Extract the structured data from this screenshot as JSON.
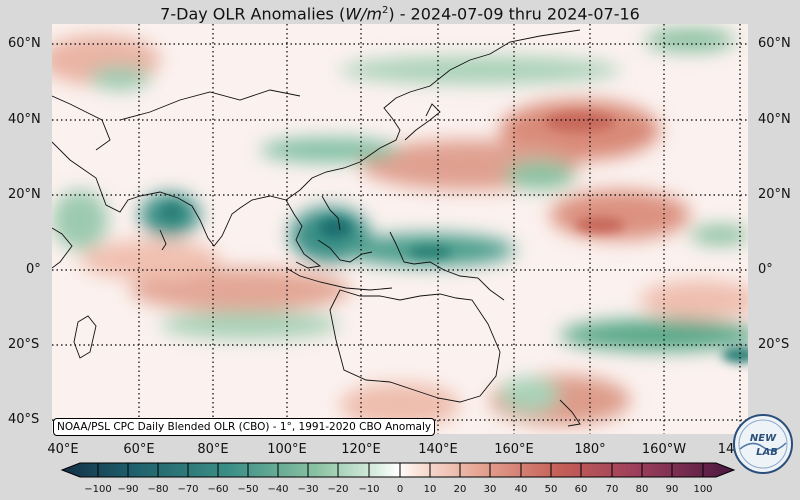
{
  "title": {
    "prefix": "7-Day OLR Anomalies (",
    "unit_w": "W/m",
    "unit_exp": "2",
    "suffix": ") - 2024-07-09 thru 2024-07-16"
  },
  "map": {
    "lat_labels": [
      "60°N",
      "40°N",
      "20°N",
      "0°",
      "20°S",
      "40°S"
    ],
    "lon_labels": [
      "40°E",
      "60°E",
      "80°E",
      "100°E",
      "120°E",
      "140°E",
      "160°E",
      "180°",
      "160°W",
      "14"
    ],
    "source_note": "NOAA/PSL CPC Daily Blended OLR (CBO) - 1°, 1991-2020 CBO Anomaly",
    "colors": {
      "negative_strong": "#1f6f6f",
      "negative_mid": "#5aa98a",
      "negative_weak": "#b9dcc6",
      "neutral": "#fbf1ee",
      "positive_weak": "#efc2b4",
      "positive_mid": "#d98a78",
      "positive_strong": "#b8594d"
    }
  },
  "colorbar": {
    "ticks": [
      "−100",
      "−90",
      "−80",
      "−70",
      "−60",
      "−50",
      "−40",
      "−30",
      "−20",
      "−10",
      "0",
      "10",
      "20",
      "30",
      "40",
      "50",
      "60",
      "70",
      "80",
      "90",
      "100"
    ]
  },
  "logo": {
    "line1": "NEW",
    "line2": "LAB"
  }
}
